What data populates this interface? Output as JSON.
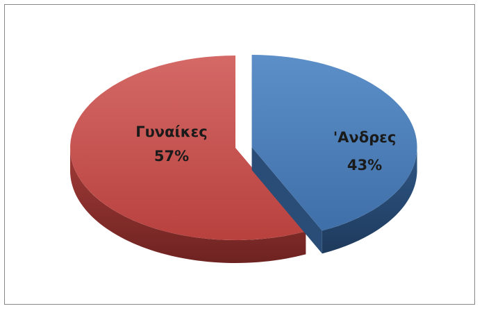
{
  "chart_data": {
    "type": "pie",
    "style": "3d-exploded",
    "title": "",
    "slices": [
      {
        "label": "Γυναίκες",
        "value": 57,
        "value_label": "57%",
        "color": "#c0504d",
        "exploded": false
      },
      {
        "label": "'Ανδρες",
        "value": 43,
        "value_label": "43%",
        "color": "#4f81bd",
        "exploded": true
      }
    ],
    "legend": "none"
  }
}
